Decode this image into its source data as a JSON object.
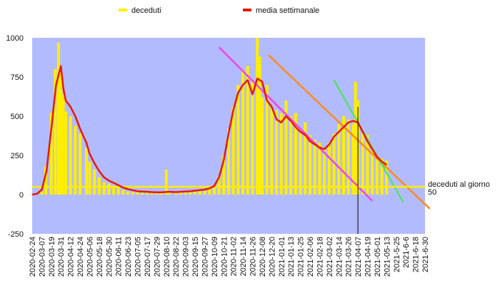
{
  "chart_data": {
    "type": "line",
    "title": "",
    "xlabel": "",
    "ylabel": "",
    "ylim": [
      -250,
      1000
    ],
    "yticks": [
      -250,
      0,
      250,
      500,
      750,
      1000
    ],
    "grid": false,
    "legend_position": "top",
    "x_tick_labels": [
      "2020-02-24",
      "2020-03-07",
      "2020-03-19",
      "2020-03-31",
      "2020-04-12",
      "2020-04-24",
      "2020-05-06",
      "2020-05-18",
      "2020-05-30",
      "2020-06-11",
      "2020-06-23",
      "2020-07-05",
      "2020-07-17",
      "2020-07-29",
      "2020-08-10",
      "2020-08-22",
      "2020-09-03",
      "2020-09-15",
      "2020-09-27",
      "2020-10-09",
      "2020-10-21",
      "2020-11-02",
      "2020-11-14",
      "2020-11-26",
      "2020-12-08",
      "2020-12-20",
      "2021-01-01",
      "2021-01-13",
      "2021-01-25",
      "2021-02-06",
      "2021-02-18",
      "2021-03-02",
      "2021-03-14",
      "2021-03-26",
      "2021-04-07",
      "2021-04-19",
      "2021-05-01",
      "2021-05-13",
      "2021-5-25",
      "2021-6-6",
      "2021-6-18",
      "2021-6-30"
    ],
    "series": [
      {
        "name": "deceduti",
        "color": "#ffee00",
        "style": "bars",
        "x": [
          "2020-02-24",
          "2020-03-07",
          "2020-03-12",
          "2020-03-19",
          "2020-03-24",
          "2020-03-28",
          "2020-03-31",
          "2020-04-03",
          "2020-04-06",
          "2020-04-12",
          "2020-04-18",
          "2020-04-24",
          "2020-05-02",
          "2020-05-06",
          "2020-05-12",
          "2020-05-18",
          "2020-05-24",
          "2020-05-30",
          "2020-06-05",
          "2020-06-11",
          "2020-06-17",
          "2020-06-23",
          "2020-06-29",
          "2020-07-05",
          "2020-07-11",
          "2020-07-17",
          "2020-07-23",
          "2020-07-29",
          "2020-08-04",
          "2020-08-10",
          "2020-08-14",
          "2020-08-22",
          "2020-08-28",
          "2020-09-03",
          "2020-09-09",
          "2020-09-15",
          "2020-09-21",
          "2020-09-27",
          "2020-10-03",
          "2020-10-09",
          "2020-10-15",
          "2020-10-21",
          "2020-10-27",
          "2020-11-02",
          "2020-11-08",
          "2020-11-14",
          "2020-11-20",
          "2020-11-26",
          "2020-12-02",
          "2020-12-05",
          "2020-12-08",
          "2020-12-14",
          "2020-12-20",
          "2020-12-26",
          "2021-01-01",
          "2021-01-07",
          "2021-01-13",
          "2021-01-19",
          "2021-01-25",
          "2021-01-31",
          "2021-02-06",
          "2021-02-12",
          "2021-02-18",
          "2021-02-24",
          "2021-03-02",
          "2021-03-08",
          "2021-03-14",
          "2021-03-20",
          "2021-03-26",
          "2021-04-01",
          "2021-04-04",
          "2021-04-07",
          "2021-04-13",
          "2021-04-19",
          "2021-04-25",
          "2021-05-01",
          "2021-05-07",
          "2021-05-13"
        ],
        "values": [
          0,
          20,
          180,
          520,
          800,
          970,
          780,
          640,
          530,
          500,
          440,
          390,
          300,
          210,
          160,
          110,
          80,
          70,
          55,
          45,
          30,
          20,
          15,
          15,
          12,
          12,
          10,
          10,
          12,
          160,
          15,
          12,
          15,
          18,
          22,
          25,
          28,
          30,
          40,
          60,
          120,
          250,
          420,
          560,
          700,
          790,
          820,
          720,
          1000,
          880,
          620,
          700,
          560,
          540,
          520,
          600,
          500,
          520,
          420,
          460,
          380,
          350,
          330,
          300,
          330,
          390,
          450,
          500,
          480,
          450,
          720,
          600,
          400,
          380,
          300,
          250,
          230,
          220
        ]
      },
      {
        "name": "media settimanale",
        "color": "#e8180a",
        "style": "line",
        "x": [
          "2020-02-24",
          "2020-03-01",
          "2020-03-07",
          "2020-03-13",
          "2020-03-19",
          "2020-03-25",
          "2020-03-31",
          "2020-04-03",
          "2020-04-06",
          "2020-04-12",
          "2020-04-18",
          "2020-04-24",
          "2020-05-02",
          "2020-05-06",
          "2020-05-12",
          "2020-05-18",
          "2020-05-24",
          "2020-05-30",
          "2020-06-05",
          "2020-06-11",
          "2020-06-17",
          "2020-06-23",
          "2020-06-29",
          "2020-07-05",
          "2020-07-11",
          "2020-07-17",
          "2020-07-23",
          "2020-07-29",
          "2020-08-04",
          "2020-08-10",
          "2020-08-14",
          "2020-08-22",
          "2020-08-28",
          "2020-09-03",
          "2020-09-09",
          "2020-09-15",
          "2020-09-21",
          "2020-09-27",
          "2020-10-03",
          "2020-10-09",
          "2020-10-15",
          "2020-10-21",
          "2020-10-27",
          "2020-11-02",
          "2020-11-08",
          "2020-11-14",
          "2020-11-20",
          "2020-11-26",
          "2020-12-02",
          "2020-12-08",
          "2020-12-14",
          "2020-12-20",
          "2020-12-26",
          "2021-01-01",
          "2021-01-07",
          "2021-01-13",
          "2021-01-19",
          "2021-01-25",
          "2021-01-31",
          "2021-02-06",
          "2021-02-12",
          "2021-02-18",
          "2021-02-24",
          "2021-03-02",
          "2021-03-08",
          "2021-03-14",
          "2021-03-20",
          "2021-03-26",
          "2021-04-01",
          "2021-04-07",
          "2021-04-13",
          "2021-04-19",
          "2021-04-25",
          "2021-05-01",
          "2021-05-07",
          "2021-05-13"
        ],
        "values": [
          0,
          5,
          30,
          150,
          420,
          700,
          820,
          680,
          600,
          560,
          500,
          420,
          330,
          260,
          200,
          150,
          110,
          90,
          75,
          60,
          45,
          35,
          28,
          22,
          20,
          18,
          16,
          15,
          15,
          17,
          18,
          16,
          18,
          20,
          22,
          25,
          28,
          32,
          40,
          55,
          110,
          220,
          390,
          540,
          650,
          700,
          730,
          640,
          740,
          720,
          600,
          560,
          480,
          460,
          500,
          470,
          430,
          400,
          380,
          340,
          320,
          300,
          290,
          320,
          370,
          400,
          430,
          460,
          470,
          460,
          400,
          340,
          290,
          240,
          210,
          190
        ]
      }
    ],
    "trend_lines": [
      {
        "color": "#ee44ee",
        "from": {
          "x": "2020-10-15",
          "y": 940
        },
        "to": {
          "x": "2021-04-25",
          "y": -40
        }
      },
      {
        "color": "#ff8a1a",
        "from": {
          "x": "2020-12-16",
          "y": 890
        },
        "to": {
          "x": "2021-07-06",
          "y": -90
        }
      },
      {
        "color": "#55e070",
        "from": {
          "x": "2021-03-08",
          "y": 730
        },
        "to": {
          "x": "2021-06-03",
          "y": -50
        }
      },
      {
        "color": "#ffee00",
        "from": {
          "x": "2020-02-24",
          "y": 50
        },
        "to": {
          "x": "2021-06-30",
          "y": 50
        }
      }
    ],
    "reference_marker": {
      "x": "2021-04-07",
      "y_from": 560,
      "y_to": -250,
      "color": "#000000"
    },
    "annotation": {
      "lines": [
        "deceduti al giorno",
        "50"
      ],
      "anchor": {
        "x": "2021-06-30",
        "y": 50
      }
    }
  }
}
